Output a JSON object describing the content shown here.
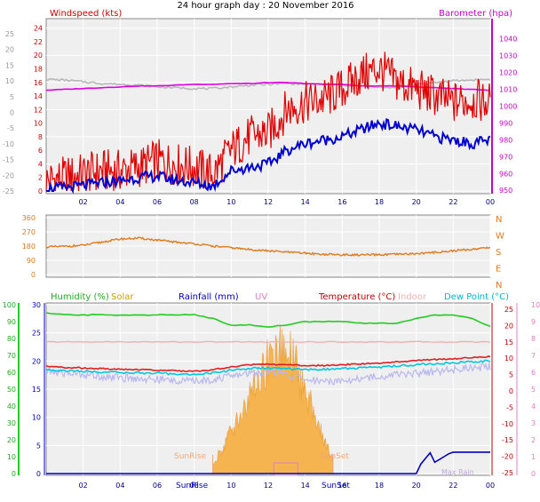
{
  "header": {
    "title": "24 hour graph day : 20 November 2016"
  },
  "colors": {
    "wind": "#e00000",
    "windAvg": "#0000d0",
    "baro": "#e000e0",
    "tempGrey": "#b8b8b8",
    "dir": "#e07a1e",
    "humidity": "#22cc22",
    "solar": "#c8a000",
    "solarFill": "#f5b450",
    "rain": "#0000c0",
    "uv": "#e080c0",
    "temperature": "#c00000",
    "indoor": "#f0b0b0",
    "dew": "#00c8e0",
    "panelBg": "#efefef",
    "grid": "#ffffff"
  },
  "x_ticks": [
    "02",
    "04",
    "06",
    "08",
    "10",
    "12",
    "14",
    "16",
    "18",
    "20",
    "22",
    "00"
  ],
  "chart_data": [
    {
      "type": "line",
      "title": "24 hour graph day : 20 November 2016",
      "left_label": "Windspeed (kts)",
      "right_label": "Barometer (hpa)",
      "x": [
        0,
        1,
        2,
        3,
        4,
        5,
        6,
        7,
        8,
        9,
        10,
        11,
        12,
        13,
        14,
        15,
        16,
        17,
        18,
        19,
        20,
        21,
        22,
        23,
        24
      ],
      "left_ticks": [
        "24",
        "22",
        "20",
        "18",
        "16",
        "14",
        "12",
        "10",
        "8",
        "6",
        "4",
        "2",
        "0"
      ],
      "far_left_ticks": [
        "25",
        "20",
        "15",
        "10",
        "5",
        "0",
        "-5",
        "-10",
        "-15",
        "-20",
        "-25"
      ],
      "right_ticks": [
        "1040",
        "1030",
        "1020",
        "1010",
        "1000",
        "990",
        "980",
        "970",
        "960",
        "950"
      ],
      "left_ylim": [
        0,
        25
      ],
      "right_ylim": [
        948,
        1052
      ],
      "series": [
        {
          "values": [
            1.5,
            2,
            2.5,
            3,
            3,
            3.5,
            4.5,
            4,
            3.5,
            2.5,
            6,
            8,
            8.5,
            12,
            13,
            13.5,
            15,
            17,
            18,
            16,
            15,
            14,
            13,
            13.5,
            13
          ]
        },
        {
          "values": [
            0.3,
            0.5,
            0.8,
            1.2,
            1.5,
            2,
            2.2,
            1.6,
            1.2,
            0.7,
            3,
            3.5,
            4,
            6,
            7,
            7.5,
            8,
            9,
            10,
            9.5,
            9,
            8,
            7.5,
            7,
            7.5
          ]
        },
        {
          "values": [
            1009.5,
            1010,
            1010.5,
            1011,
            1011.5,
            1012,
            1012,
            1012.5,
            1013,
            1013,
            1013.5,
            1013.5,
            1014,
            1014,
            1013.5,
            1013,
            1013,
            1012,
            1012,
            1012,
            1011.5,
            1011,
            1010.5,
            1010,
            1009.5
          ]
        },
        {
          "values": [
            1016,
            1015.5,
            1014.5,
            1013.5,
            1013,
            1012.5,
            1011.5,
            1011,
            1010.5,
            1010.5,
            1011.5,
            1012.5,
            1013,
            1013.5,
            1013,
            1013,
            1012.5,
            1012,
            1011,
            1011.5,
            1013,
            1014,
            1015,
            1015.5,
            1016
          ]
        }
      ]
    },
    {
      "type": "line",
      "direction_labels": [
        "N",
        "W",
        "S",
        "E",
        "N"
      ],
      "left_ticks": [
        "360",
        "270",
        "180",
        "90",
        "0"
      ],
      "ylim": [
        0,
        360
      ],
      "x": [
        0,
        1,
        2,
        3,
        4,
        5,
        6,
        7,
        8,
        9,
        10,
        11,
        12,
        13,
        14,
        15,
        16,
        17,
        18,
        19,
        20,
        21,
        22,
        23,
        24
      ],
      "series": [
        {
          "values": [
            175,
            178,
            185,
            205,
            225,
            230,
            218,
            205,
            195,
            180,
            170,
            158,
            150,
            142,
            135,
            128,
            125,
            124,
            125,
            128,
            132,
            140,
            150,
            160,
            172
          ]
        }
      ]
    },
    {
      "type": "line",
      "labels": {
        "humidity": "Humidity (%)",
        "solar": "Solar",
        "rainfall": "Rainfall (mm)",
        "uv": "UV",
        "temperature": "Temperature (°C)",
        "indoor": "Indoor",
        "dew": "Dew Point (°C)"
      },
      "annotations": [
        "SunRise",
        "SunSet"
      ],
      "bottom_labels": [
        "SunRise",
        "SunSet"
      ],
      "uv_max_label": "Max Rain",
      "far_left_ticks": [
        "100",
        "90",
        "80",
        "70",
        "60",
        "50",
        "40",
        "30",
        "20",
        "10",
        "0"
      ],
      "left_ticks": [
        "30",
        "25",
        "20",
        "15",
        "10",
        "5",
        "0"
      ],
      "temp_ticks": [
        "25",
        "20",
        "15",
        "10",
        "5",
        "0",
        "-5",
        "-10",
        "-15",
        "-20",
        "-25"
      ],
      "uv_ticks": [
        "10",
        "9",
        "8",
        "7",
        "6",
        "5",
        "4",
        "3",
        "2",
        "1",
        "0"
      ],
      "ylim": [
        -25,
        25
      ],
      "x": [
        0,
        1,
        2,
        3,
        4,
        5,
        6,
        7,
        8,
        9,
        10,
        11,
        12,
        13,
        14,
        15,
        16,
        17,
        18,
        19,
        20,
        21,
        22,
        23,
        24
      ],
      "series": [
        {
          "values": [
            95,
            94,
            94,
            94,
            94,
            94,
            94,
            94,
            94,
            92,
            88,
            88,
            87,
            88,
            90,
            90,
            90,
            89,
            89,
            89,
            92,
            94,
            94,
            92,
            87
          ]
        },
        {
          "values": [
            7.5,
            7.2,
            7.0,
            6.8,
            6.6,
            6.5,
            6.4,
            6.2,
            6.0,
            6.5,
            7.3,
            8.0,
            8.2,
            8.0,
            7.7,
            7.8,
            8.0,
            8.3,
            8.5,
            8.9,
            9.3,
            9.6,
            9.8,
            10.2,
            10.5
          ]
        },
        {
          "values": [
            6.5,
            6.2,
            6.0,
            5.8,
            5.6,
            5.5,
            5.4,
            5.2,
            5.0,
            5.5,
            6.3,
            6.9,
            7.0,
            6.8,
            6.5,
            6.6,
            6.8,
            7.1,
            7.3,
            7.7,
            8.0,
            8.3,
            8.6,
            8.9,
            9.2
          ]
        },
        {
          "values": [
            6.0,
            5.5,
            5.0,
            4.5,
            4.0,
            3.8,
            3.5,
            3.2,
            3.0,
            3.5,
            4.5,
            5.5,
            6.0,
            5.0,
            3.5,
            3.0,
            3.2,
            3.8,
            4.5,
            5.0,
            5.5,
            6.0,
            6.5,
            7.0,
            7.5
          ]
        },
        {
          "values": [
            15,
            15,
            15,
            15,
            15,
            15,
            15,
            15,
            15,
            15,
            15,
            15,
            15,
            15,
            15,
            15,
            15,
            15,
            15,
            15,
            15,
            15,
            15,
            15,
            15
          ]
        },
        {
          "values": [
            0,
            0,
            0,
            0,
            0,
            0,
            0,
            0,
            0,
            0,
            0,
            0,
            0,
            0,
            0,
            0,
            0,
            0,
            0,
            0,
            0,
            2,
            4,
            4,
            4
          ]
        },
        {
          "values": [
            0,
            0,
            0,
            0,
            0,
            0,
            0,
            0,
            0,
            0.5,
            2.5,
            4.5,
            6.5,
            7.5,
            5,
            2,
            0,
            0,
            0,
            0,
            0,
            0,
            0,
            0,
            0
          ]
        }
      ]
    }
  ]
}
